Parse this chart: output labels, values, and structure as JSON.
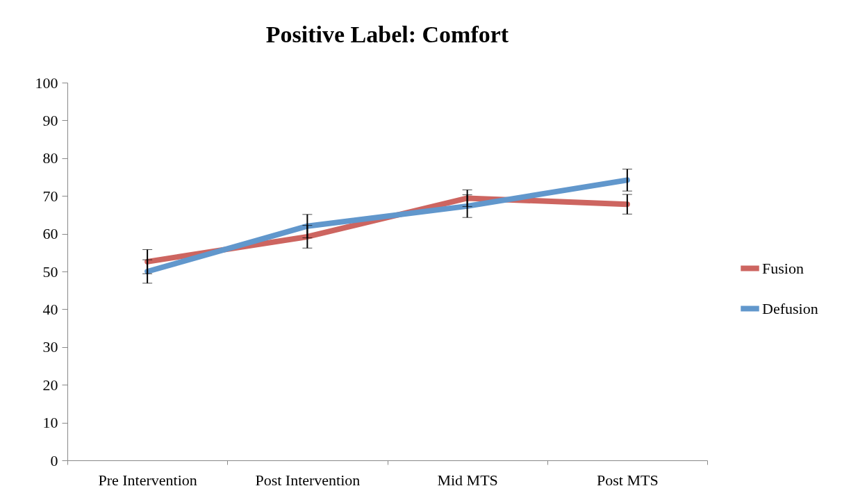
{
  "chart_data": {
    "type": "line",
    "title": "Positive Label: Comfort",
    "categories": [
      "Pre Intervention",
      "Post Intervention",
      "Mid MTS",
      "Post MTS"
    ],
    "series": [
      {
        "name": "Fusion",
        "color": "#cd6560",
        "values": [
          52.6,
          59.2,
          69.4,
          67.8
        ],
        "errors": [
          3.2,
          3.0,
          2.2,
          2.6
        ]
      },
      {
        "name": "Defusion",
        "color": "#6197cc",
        "values": [
          50.0,
          62.0,
          67.3,
          74.2
        ],
        "errors": [
          3.1,
          3.1,
          3.0,
          2.9
        ]
      }
    ],
    "ylim": [
      0,
      100
    ],
    "yticks": [
      0,
      10,
      20,
      30,
      40,
      50,
      60,
      70,
      80,
      90,
      100
    ],
    "grid": false,
    "legend": "right",
    "marker": "none",
    "line_style": "solid"
  }
}
